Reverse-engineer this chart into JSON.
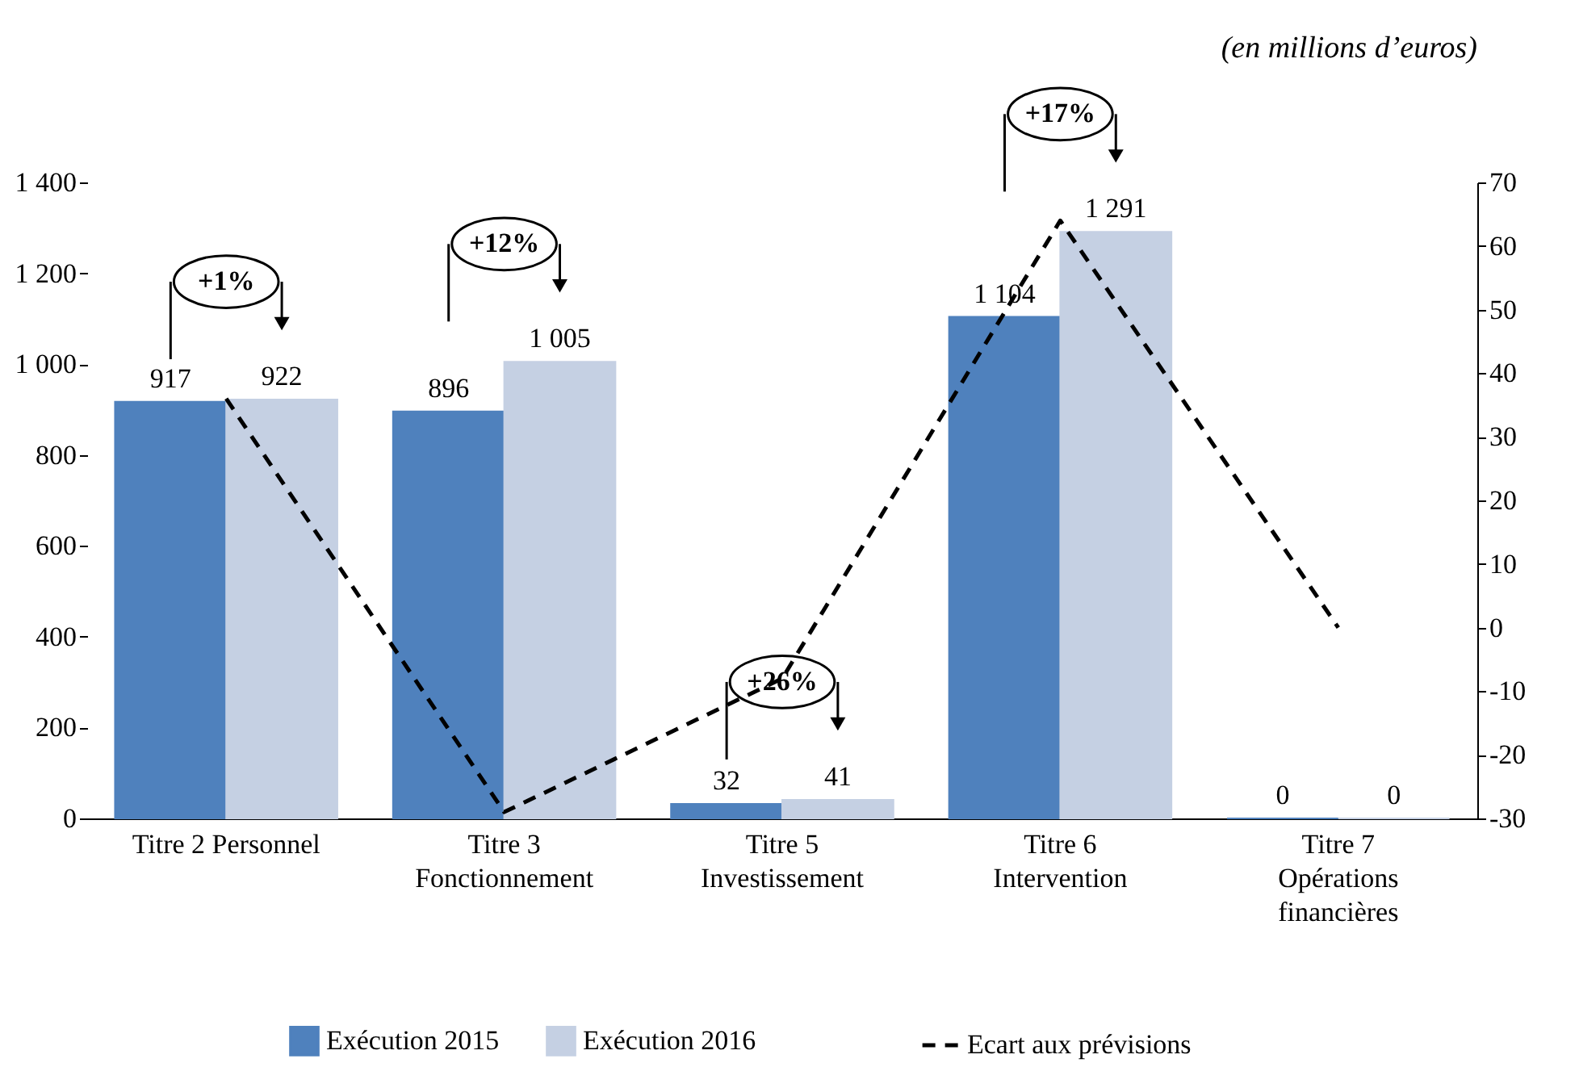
{
  "chart_data": {
    "type": "bar",
    "subtitle": "(en millions d’euros)",
    "categories": [
      "Titre 2 Personnel",
      "Titre 3\nFonctionnement",
      "Titre 5\nInvestissement",
      "Titre 6\nIntervention",
      "Titre 7\nOpérations\nfinancières"
    ],
    "series": [
      {
        "name": "Exécution 2015",
        "color": "#4f81bd",
        "values": [
          917,
          896,
          32,
          1104,
          0
        ],
        "value_labels": [
          "917",
          "896",
          "32",
          "1 104",
          "0"
        ]
      },
      {
        "name": "Exécution 2016",
        "color": "#c5d0e3",
        "values": [
          922,
          1005,
          41,
          1291,
          0
        ],
        "value_labels": [
          "922",
          "1 005",
          "41",
          "1 291",
          "0"
        ]
      },
      {
        "name": "Ecart aux prévisions",
        "type": "line",
        "axis": "y2",
        "color": "#000000",
        "line_style": "dashed",
        "values": [
          36,
          -29,
          -8,
          64,
          0
        ]
      }
    ],
    "ylim": [
      0,
      1400
    ],
    "yticks": [
      0,
      200,
      400,
      600,
      800,
      {
        "value": 1000,
        "label": "1 000"
      },
      {
        "value": 1200,
        "label": "1 200"
      },
      {
        "value": 1400,
        "label": "1 400"
      }
    ],
    "y2lim": [
      -30,
      70
    ],
    "y2ticks": [
      -30,
      -20,
      -10,
      0,
      10,
      20,
      30,
      40,
      50,
      60,
      70
    ],
    "annotations": [
      "+1%",
      "+12%",
      "+26%",
      "+17%"
    ],
    "grid": false,
    "legend": "bottom"
  }
}
